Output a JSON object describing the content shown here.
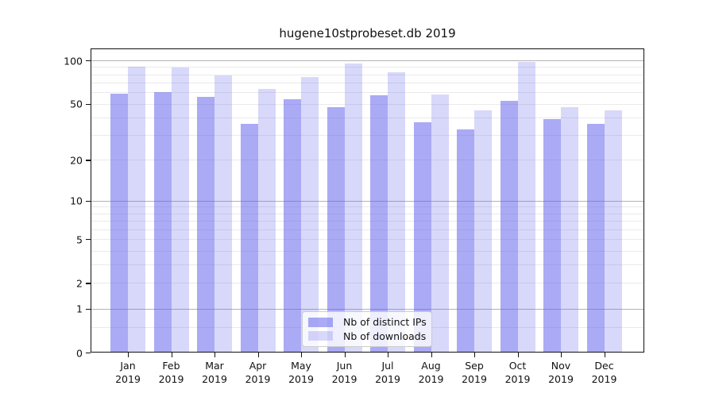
{
  "chart_data": {
    "type": "bar",
    "title": "hugene10stprobeset.db 2019",
    "year_label": "2019",
    "categories": [
      "Jan",
      "Feb",
      "Mar",
      "Apr",
      "May",
      "Jun",
      "Jul",
      "Aug",
      "Sep",
      "Oct",
      "Nov",
      "Dec"
    ],
    "series": [
      {
        "name": "Nb of distinct IPs",
        "values": [
          59,
          60,
          56,
          36,
          54,
          47,
          57,
          37,
          33,
          52,
          39,
          36
        ],
        "color": "rgba(92,92,236,0.52)"
      },
      {
        "name": "Nb of downloads",
        "values": [
          91,
          89,
          79,
          63,
          77,
          95,
          83,
          58,
          45,
          97,
          47,
          45
        ],
        "color": "rgba(92,92,236,0.24)"
      }
    ],
    "xlabel": "",
    "ylabel": "",
    "yscale": "log10(1+y)",
    "ylim": [
      0,
      121
    ],
    "yticks": [
      0,
      1,
      2,
      5,
      10,
      20,
      50,
      100
    ],
    "major_gridlines": [
      1,
      10,
      100
    ],
    "minor_gridlines": [
      0.5,
      2,
      3,
      4,
      5,
      6,
      7,
      8,
      9,
      20,
      30,
      40,
      50,
      60,
      70,
      80,
      90
    ],
    "grid": "on",
    "legend_position": "lower center",
    "colors": {
      "bar_base": "#5c5cec",
      "major_grid": "#b3b3b3",
      "minor_grid": "#eaeaea",
      "axis": "#111111",
      "legend_border": "#cccccc",
      "background": "#ffffff"
    }
  }
}
